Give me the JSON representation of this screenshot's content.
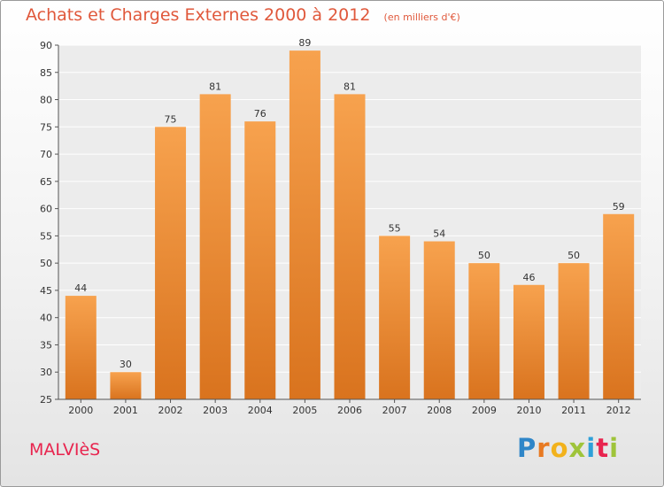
{
  "chart_data": {
    "type": "bar",
    "title": "Achats et Charges Externes 2000 à 2012",
    "subtitle": "(en milliers d'€)",
    "categories": [
      "2000",
      "2001",
      "2002",
      "2003",
      "2004",
      "2005",
      "2006",
      "2007",
      "2008",
      "2009",
      "2010",
      "2011",
      "2012"
    ],
    "values": [
      44,
      30,
      75,
      81,
      76,
      89,
      81,
      55,
      54,
      50,
      46,
      50,
      59
    ],
    "ylim": [
      25,
      90
    ],
    "yticks": [
      25,
      30,
      35,
      40,
      45,
      50,
      55,
      60,
      65,
      70,
      75,
      80,
      85,
      90
    ],
    "grid": true,
    "bar_color_top": "#f7a24e",
    "bar_color_bottom": "#d9731e",
    "title_color": "#e0583b"
  },
  "footer": {
    "city": "MALVIèS",
    "logo_letters": [
      "P",
      "r",
      "o",
      "x",
      "i",
      "t",
      "i"
    ]
  }
}
